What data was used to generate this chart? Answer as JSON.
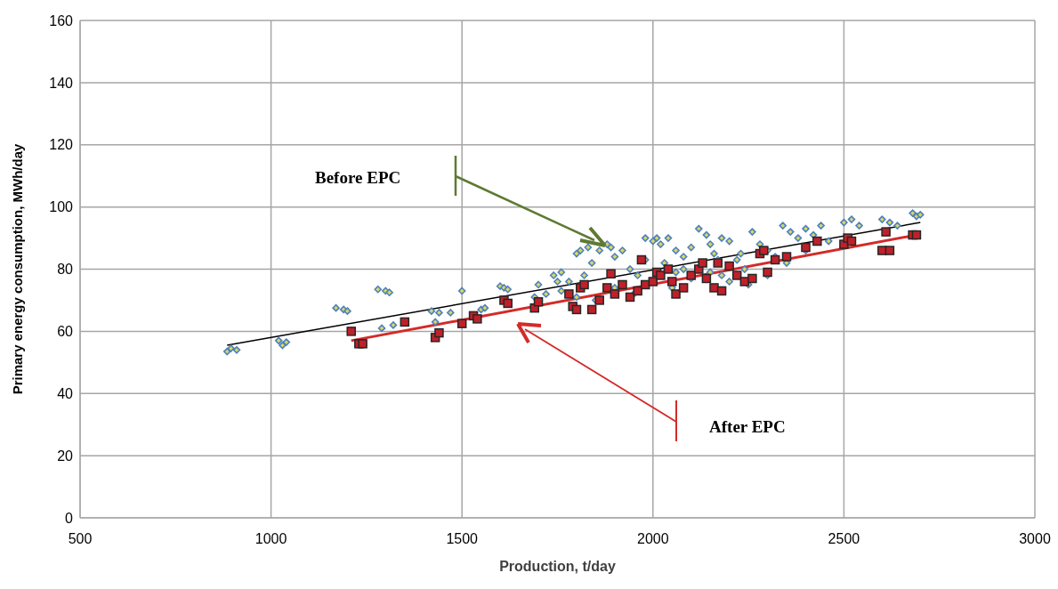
{
  "chart_data": {
    "type": "scatter",
    "xlabel": "Production, t/day",
    "ylabel": "Primary energy consumption,  MWh/day",
    "xlim": [
      500,
      3000
    ],
    "xticks": [
      500,
      1000,
      1500,
      2000,
      2500,
      3000
    ],
    "ylim": [
      0,
      160
    ],
    "yticks": [
      0,
      20,
      40,
      60,
      80,
      100,
      120,
      140,
      160
    ],
    "grid": true,
    "legend": false,
    "annotations": [
      "Before EPC",
      "After EPC"
    ],
    "series": [
      {
        "type": "scatter",
        "color": "#4f81bd",
        "marker": "diamond",
        "x": [
          885,
          895,
          910,
          1020,
          1030,
          1040,
          1170,
          1190,
          1200,
          1280,
          1300,
          1310,
          1290,
          1320,
          1420,
          1440,
          1430,
          1500,
          1470,
          1550,
          1560,
          1600,
          1610,
          1620,
          1690,
          1720,
          1740,
          1760,
          1780,
          1800,
          1810,
          1830,
          1840,
          1860,
          1880,
          1890,
          1900,
          1920,
          1940,
          1960,
          1980,
          2000,
          2010,
          2020,
          2040,
          2060,
          2080,
          2100,
          2120,
          2140,
          2150,
          2160,
          2180,
          2200,
          2220,
          2240,
          2260,
          2280,
          2300,
          2320,
          2340,
          2360,
          2380,
          2400,
          2420,
          2440,
          2460,
          2500,
          2520,
          2540,
          2600,
          2620,
          2640,
          2680,
          2690,
          2700,
          1760,
          1800,
          1850,
          1900,
          1950,
          2050,
          2100,
          2150,
          2200,
          2250,
          2300,
          1980,
          2030,
          2080,
          2180,
          2230,
          2350,
          2400,
          1700,
          1750,
          1820,
          2060,
          2170
        ],
        "values": [
          53.5,
          54.5,
          54,
          57,
          55.5,
          56.5,
          67.5,
          67,
          66.5,
          73.5,
          73,
          72.5,
          61,
          62,
          66.5,
          66,
          63,
          73,
          66,
          67,
          67.5,
          74.5,
          74,
          73.5,
          71,
          72,
          78,
          79,
          76,
          85,
          86,
          87,
          82,
          86,
          88,
          87,
          84,
          86,
          80,
          78,
          90,
          89,
          90,
          88,
          90,
          86,
          84,
          87,
          93,
          91,
          88,
          85,
          90,
          89,
          83,
          80,
          92,
          88,
          86,
          84,
          94,
          92,
          90,
          93,
          91,
          94,
          89,
          95,
          96,
          94,
          96,
          95,
          94,
          98,
          97,
          97.5,
          73,
          71,
          70,
          74,
          72,
          74,
          77,
          79,
          76,
          75,
          78,
          83,
          82,
          80,
          78,
          85,
          82,
          86,
          75,
          76,
          78,
          79,
          83
        ]
      },
      {
        "type": "scatter",
        "color": "#c0202a",
        "marker": "square",
        "x": [
          1210,
          1230,
          1240,
          1350,
          1430,
          1440,
          1500,
          1530,
          1540,
          1610,
          1620,
          1690,
          1700,
          1780,
          1790,
          1800,
          1810,
          1820,
          1840,
          1860,
          1880,
          1890,
          1900,
          1920,
          1940,
          1960,
          1980,
          2000,
          2010,
          2020,
          2040,
          2050,
          2060,
          2080,
          2100,
          2120,
          2140,
          2160,
          2180,
          2200,
          2220,
          2240,
          2260,
          2280,
          2290,
          2300,
          2320,
          2350,
          2400,
          2430,
          2500,
          2510,
          2520,
          2600,
          2610,
          2620,
          2680,
          2690,
          2130,
          2170,
          1970
        ],
        "values": [
          60,
          56,
          56,
          63,
          58,
          59.5,
          62.5,
          65,
          64,
          70,
          69,
          67.5,
          69.5,
          72,
          68,
          67,
          74,
          75,
          67,
          70,
          74,
          78.5,
          72,
          75,
          71,
          73,
          75,
          76,
          79,
          78,
          80,
          76,
          72,
          74,
          78,
          80,
          77,
          74,
          73,
          81,
          78,
          76,
          77,
          85,
          86,
          79,
          83,
          84,
          87,
          89,
          88,
          90,
          89,
          86,
          92,
          86,
          91,
          91,
          82,
          82,
          83
        ]
      },
      {
        "type": "line",
        "color": "#000000",
        "marker": "none",
        "x": [
          885,
          2700
        ],
        "values": [
          55.5,
          95
        ]
      },
      {
        "type": "line",
        "color": "#d42a2a",
        "marker": "none",
        "x": [
          1210,
          2690
        ],
        "values": [
          57,
          91
        ]
      }
    ]
  }
}
